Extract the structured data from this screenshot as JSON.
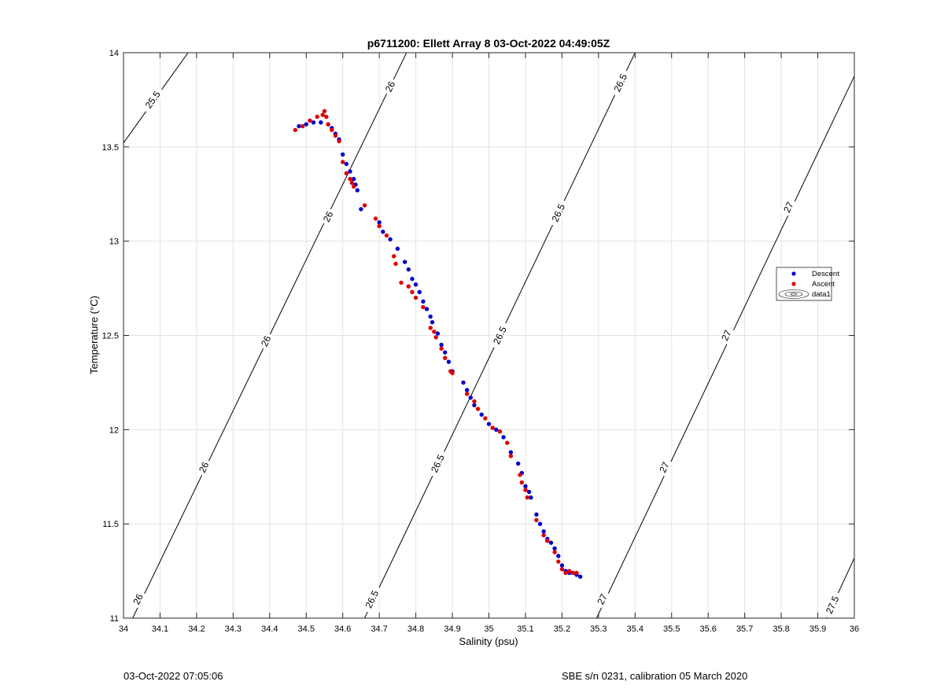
{
  "chart_data": {
    "type": "scatter",
    "title": "p6711200: Ellett Array 8 03-Oct-2022 04:49:05Z",
    "xlabel": "Salinity (psu)",
    "ylabel": "Temperature (°C)",
    "xlim": [
      34,
      36
    ],
    "ylim": [
      11,
      14
    ],
    "xticks": [
      "34",
      "34.1",
      "34.2",
      "34.3",
      "34.4",
      "34.5",
      "34.6",
      "34.7",
      "34.8",
      "34.9",
      "35",
      "35.1",
      "35.2",
      "35.3",
      "35.4",
      "35.5",
      "35.6",
      "35.7",
      "35.8",
      "35.9",
      "36"
    ],
    "yticks": [
      "11",
      "11.5",
      "12",
      "12.5",
      "13",
      "13.5",
      "14"
    ],
    "grid": true,
    "legend_position": "right",
    "legend": [
      "Descent",
      "Ascent",
      "data1"
    ],
    "colors": {
      "descent": "#0000cc",
      "ascent": "#dd0000",
      "contour": "#000000",
      "grid": "#e3e3e3"
    },
    "series": [
      {
        "name": "Descent",
        "points": [
          [
            34.48,
            13.61
          ],
          [
            34.5,
            13.62
          ],
          [
            34.52,
            13.63
          ],
          [
            34.54,
            13.63
          ],
          [
            34.56,
            13.62
          ],
          [
            34.57,
            13.6
          ],
          [
            34.58,
            13.57
          ],
          [
            34.59,
            13.54
          ],
          [
            34.6,
            13.46
          ],
          [
            34.61,
            13.41
          ],
          [
            34.62,
            13.37
          ],
          [
            34.63,
            13.33
          ],
          [
            34.635,
            13.3
          ],
          [
            34.64,
            13.27
          ],
          [
            34.65,
            13.17
          ],
          [
            34.7,
            13.1
          ],
          [
            34.71,
            13.05
          ],
          [
            34.73,
            13.01
          ],
          [
            34.75,
            12.96
          ],
          [
            34.77,
            12.89
          ],
          [
            34.78,
            12.85
          ],
          [
            34.79,
            12.8
          ],
          [
            34.8,
            12.77
          ],
          [
            34.81,
            12.73
          ],
          [
            34.82,
            12.68
          ],
          [
            34.83,
            12.64
          ],
          [
            34.84,
            12.6
          ],
          [
            34.845,
            12.57
          ],
          [
            34.86,
            12.51
          ],
          [
            34.87,
            12.45
          ],
          [
            34.88,
            12.41
          ],
          [
            34.89,
            12.36
          ],
          [
            34.9,
            12.31
          ],
          [
            34.93,
            12.25
          ],
          [
            34.94,
            12.21
          ],
          [
            34.95,
            12.17
          ],
          [
            34.96,
            12.13
          ],
          [
            34.98,
            12.08
          ],
          [
            35.0,
            12.03
          ],
          [
            35.02,
            12.0
          ],
          [
            35.04,
            11.96
          ],
          [
            35.06,
            11.88
          ],
          [
            35.08,
            11.82
          ],
          [
            35.09,
            11.77
          ],
          [
            35.1,
            11.7
          ],
          [
            35.11,
            11.67
          ],
          [
            35.115,
            11.64
          ],
          [
            35.13,
            11.55
          ],
          [
            35.14,
            11.5
          ],
          [
            35.15,
            11.46
          ],
          [
            35.16,
            11.42
          ],
          [
            35.17,
            11.4
          ],
          [
            35.18,
            11.37
          ],
          [
            35.19,
            11.33
          ],
          [
            35.2,
            11.28
          ],
          [
            35.21,
            11.25
          ],
          [
            35.22,
            11.24
          ],
          [
            35.23,
            11.24
          ],
          [
            35.24,
            11.23
          ],
          [
            35.25,
            11.22
          ]
        ]
      },
      {
        "name": "Ascent",
        "points": [
          [
            34.47,
            13.59
          ],
          [
            34.49,
            13.61
          ],
          [
            34.51,
            13.64
          ],
          [
            34.53,
            13.66
          ],
          [
            34.545,
            13.67
          ],
          [
            34.55,
            13.69
          ],
          [
            34.555,
            13.66
          ],
          [
            34.56,
            13.62
          ],
          [
            34.57,
            13.59
          ],
          [
            34.58,
            13.56
          ],
          [
            34.59,
            13.53
          ],
          [
            34.6,
            13.42
          ],
          [
            34.61,
            13.36
          ],
          [
            34.62,
            13.33
          ],
          [
            34.625,
            13.31
          ],
          [
            34.63,
            13.29
          ],
          [
            34.66,
            13.19
          ],
          [
            34.69,
            13.12
          ],
          [
            34.7,
            13.08
          ],
          [
            34.72,
            13.03
          ],
          [
            34.74,
            12.92
          ],
          [
            34.745,
            12.88
          ],
          [
            34.76,
            12.78
          ],
          [
            34.78,
            12.76
          ],
          [
            34.79,
            12.73
          ],
          [
            34.8,
            12.7
          ],
          [
            34.82,
            12.65
          ],
          [
            34.84,
            12.54
          ],
          [
            34.85,
            12.52
          ],
          [
            34.855,
            12.49
          ],
          [
            34.87,
            12.43
          ],
          [
            34.88,
            12.38
          ],
          [
            34.895,
            12.31
          ],
          [
            34.9,
            12.3
          ],
          [
            34.94,
            12.19
          ],
          [
            34.96,
            12.15
          ],
          [
            34.97,
            12.11
          ],
          [
            34.99,
            12.06
          ],
          [
            35.01,
            12.01
          ],
          [
            35.03,
            11.99
          ],
          [
            35.05,
            11.93
          ],
          [
            35.06,
            11.86
          ],
          [
            35.085,
            11.76
          ],
          [
            35.09,
            11.72
          ],
          [
            35.1,
            11.68
          ],
          [
            35.105,
            11.64
          ],
          [
            35.13,
            11.52
          ],
          [
            35.15,
            11.44
          ],
          [
            35.16,
            11.41
          ],
          [
            35.18,
            11.35
          ],
          [
            35.19,
            11.3
          ],
          [
            35.2,
            11.26
          ],
          [
            35.21,
            11.24
          ],
          [
            35.22,
            11.25
          ],
          [
            35.23,
            11.24
          ],
          [
            35.24,
            11.24
          ]
        ]
      }
    ],
    "contours": [
      {
        "label": "25.5",
        "from": [
          33.97,
          13.44
        ],
        "to": [
          34.232,
          14.15
        ],
        "label_at": [
          34.08,
          13.75
        ]
      },
      {
        "label": "26",
        "from": [
          34.0,
          10.9
        ],
        "to": [
          34.812,
          14.15
        ],
        "label_at": [
          [
            34.04,
            11.1
          ],
          [
            34.22,
            11.8
          ],
          [
            34.39,
            12.47
          ],
          [
            34.56,
            13.13
          ],
          [
            34.73,
            13.82
          ]
        ]
      },
      {
        "label": "26.5",
        "from": [
          34.635,
          10.9
        ],
        "to": [
          35.437,
          14.15
        ],
        "label_at": [
          [
            34.68,
            11.1
          ],
          [
            34.86,
            11.82
          ],
          [
            35.03,
            12.5
          ],
          [
            35.19,
            13.15
          ],
          [
            35.36,
            13.84
          ]
        ]
      },
      {
        "label": "27",
        "from": [
          35.27,
          10.9
        ],
        "to": [
          36.06,
          14.12
        ],
        "label_at": [
          [
            35.31,
            11.1
          ],
          [
            35.48,
            11.8
          ],
          [
            35.65,
            12.5
          ],
          [
            35.82,
            13.18
          ]
        ]
      },
      {
        "label": "27.5",
        "from": [
          35.9,
          10.9
        ],
        "to": [
          36.06,
          11.57
        ],
        "label_at": [
          35.94,
          11.07
        ]
      }
    ]
  },
  "footer": {
    "left": "03-Oct-2022 07:05:06",
    "right": "SBE s/n 0231, calibration 05 March 2020"
  }
}
